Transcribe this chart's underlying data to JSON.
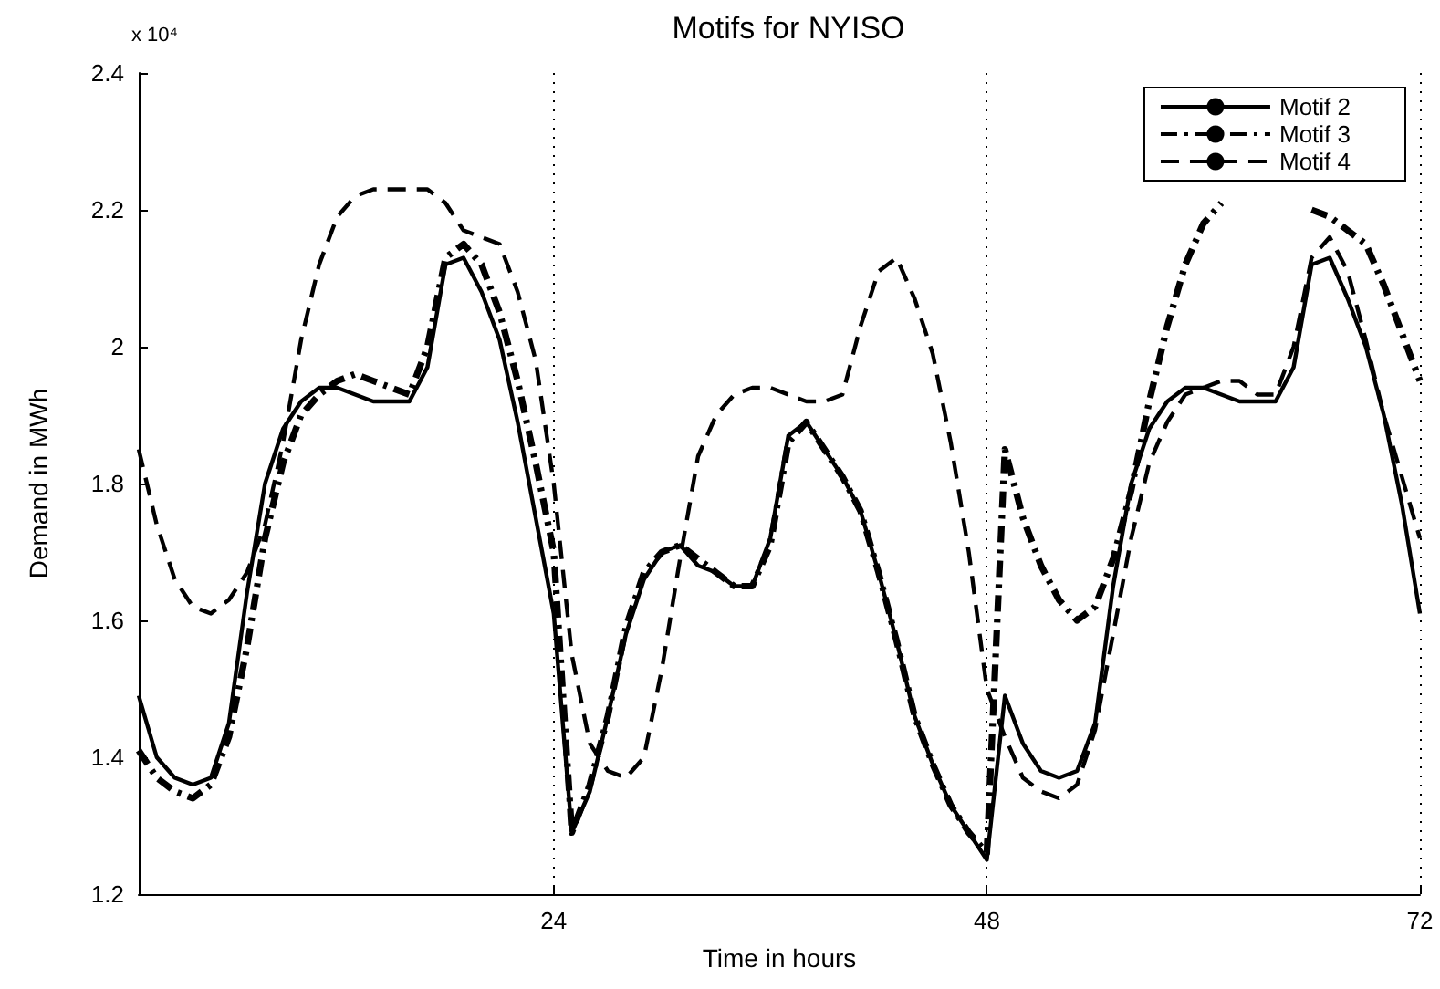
{
  "chart_data": {
    "type": "line",
    "title": "Motifs for NYISO",
    "xlabel": "Time in hours",
    "ylabel": "Demand in MWh",
    "annotations": [
      "x 10⁴"
    ],
    "x": [
      1,
      2,
      3,
      4,
      5,
      6,
      7,
      8,
      9,
      10,
      11,
      12,
      13,
      14,
      15,
      16,
      17,
      18,
      19,
      20,
      21,
      22,
      23,
      24,
      25,
      26,
      27,
      28,
      29,
      30,
      31,
      32,
      33,
      34,
      35,
      36,
      37,
      38,
      39,
      40,
      41,
      42,
      43,
      44,
      45,
      46,
      47,
      48,
      49,
      50,
      51,
      52,
      53,
      54,
      55,
      56,
      57,
      58,
      59,
      60,
      61,
      62,
      63,
      64,
      65,
      66,
      67,
      68,
      69,
      70,
      71,
      72
    ],
    "series": [
      {
        "name": "Motif 2",
        "color": "#000000",
        "line_style": "solid",
        "values": [
          1.49,
          1.4,
          1.37,
          1.36,
          1.37,
          1.45,
          1.64,
          1.8,
          1.88,
          1.92,
          1.94,
          1.94,
          1.93,
          1.92,
          1.92,
          1.92,
          1.97,
          2.12,
          2.13,
          2.08,
          2.01,
          1.89,
          1.75,
          1.61,
          1.29,
          1.35,
          1.46,
          1.58,
          1.66,
          1.7,
          1.71,
          1.68,
          1.67,
          1.65,
          1.65,
          1.72,
          1.87,
          1.89,
          1.85,
          1.81,
          1.76,
          1.67,
          1.57,
          1.46,
          1.39,
          1.33,
          1.29,
          1.25,
          1.49,
          1.42,
          1.38,
          1.37,
          1.38,
          1.45,
          1.65,
          1.8,
          1.88,
          1.92,
          1.94,
          1.94,
          1.93,
          1.92,
          1.92,
          1.92,
          1.97,
          2.12,
          2.13,
          2.07,
          2.0,
          1.9,
          1.77,
          1.61
        ]
      },
      {
        "name": "Motif 3",
        "color": "#000000",
        "line_style": "dashdot",
        "values": [
          1.41,
          1.37,
          1.35,
          1.34,
          1.36,
          1.43,
          1.56,
          1.72,
          1.83,
          1.9,
          1.93,
          1.95,
          1.96,
          1.95,
          1.94,
          1.93,
          2.0,
          2.13,
          2.15,
          2.12,
          2.05,
          1.95,
          1.83,
          1.7,
          1.29,
          1.36,
          1.46,
          1.59,
          1.67,
          1.7,
          1.71,
          1.69,
          1.67,
          1.65,
          1.65,
          1.71,
          1.86,
          1.89,
          1.85,
          1.81,
          1.76,
          1.67,
          1.57,
          1.46,
          1.39,
          1.33,
          1.29,
          1.26,
          1.85,
          1.75,
          1.68,
          1.63,
          1.6,
          1.62,
          1.69,
          1.79,
          1.92,
          2.03,
          2.12,
          2.18,
          2.21,
          null,
          null,
          null,
          null,
          2.2,
          2.19,
          2.17,
          2.15,
          2.09,
          2.02,
          1.95
        ]
      },
      {
        "name": "Motif 4",
        "color": "#000000",
        "line_style": "dashed",
        "values": [
          1.85,
          1.74,
          1.66,
          1.62,
          1.61,
          1.63,
          1.67,
          1.74,
          1.86,
          2.01,
          2.12,
          2.19,
          2.22,
          2.23,
          2.23,
          2.23,
          2.23,
          2.21,
          2.17,
          2.16,
          2.15,
          2.08,
          1.98,
          1.8,
          1.55,
          1.42,
          1.38,
          1.37,
          1.4,
          1.53,
          1.69,
          1.84,
          1.9,
          1.93,
          1.94,
          1.94,
          1.93,
          1.92,
          1.92,
          1.93,
          2.03,
          2.11,
          2.13,
          2.07,
          1.99,
          1.86,
          1.7,
          1.5,
          1.43,
          1.37,
          1.35,
          1.34,
          1.36,
          1.44,
          1.58,
          1.72,
          1.83,
          1.89,
          1.93,
          1.94,
          1.95,
          1.95,
          1.93,
          1.93,
          2.0,
          2.13,
          2.16,
          2.11,
          2.01,
          1.9,
          1.81,
          1.72
        ]
      }
    ],
    "xlim": [
      1,
      72
    ],
    "xticks": [
      24,
      48,
      72
    ],
    "ylim": [
      1.2,
      2.4
    ],
    "yticks": [
      1.2,
      1.4,
      1.6,
      1.8,
      2,
      2.2,
      2.4
    ],
    "grid": "x",
    "legend": "top right",
    "marker": "none"
  }
}
